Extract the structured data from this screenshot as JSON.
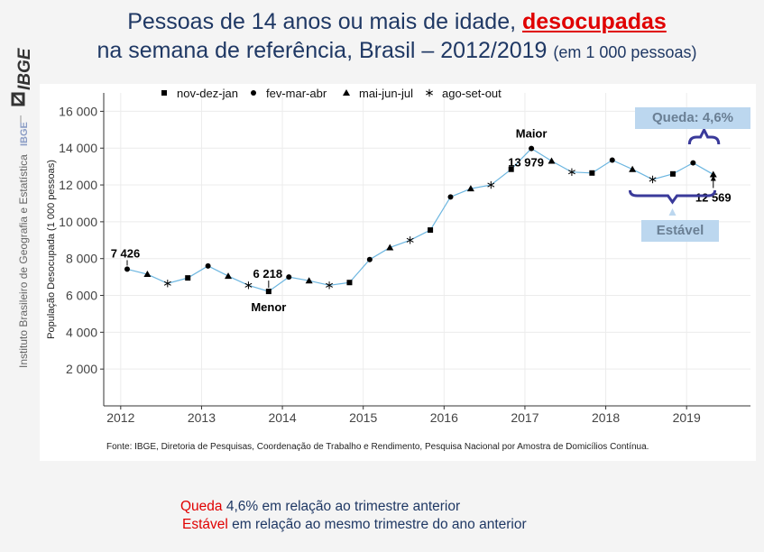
{
  "logo": {
    "text": "IBGE"
  },
  "side_text": {
    "institute": "Instituto Brasileiro de Geografia e Estatística",
    "short": "IBGE"
  },
  "title": {
    "line1_prefix": "Pessoas de 14 anos ou mais de idade, ",
    "line1_highlight": "desocupadas",
    "line2": "na semana de referência,  Brasil – 2012/2019 ",
    "line2_small": "(em 1 000 pessoas)"
  },
  "colors": {
    "line": "#6cb6e0",
    "title": "#1f3864",
    "highlight": "#e00000",
    "brace": "#3a3a9a",
    "callout_bg": "#bcd7ef"
  },
  "chart_data": {
    "type": "line",
    "ylabel": "População Desocupada (1 000 pessoas)",
    "ylim": [
      0,
      17000
    ],
    "y_ticks": [
      2000,
      4000,
      6000,
      8000,
      10000,
      12000,
      14000,
      16000
    ],
    "y_tick_labels": [
      "2 000",
      "4 000",
      "6 000",
      "8 000",
      "10 000",
      "12 000",
      "14 000",
      "16 000"
    ],
    "x_ticks": [
      2012,
      2013,
      2014,
      2015,
      2016,
      2017,
      2018,
      2019
    ],
    "legend": [
      {
        "label": "nov-dez-jan",
        "marker": "square"
      },
      {
        "label": "fev-mar-abr",
        "marker": "circle"
      },
      {
        "label": "mai-jun-jul",
        "marker": "triangle"
      },
      {
        "label": "ago-set-out",
        "marker": "asterisk"
      }
    ],
    "legend_position": "top",
    "grid": true,
    "points": [
      {
        "x": 2012.08,
        "y": 7426,
        "marker": "circle"
      },
      {
        "x": 2012.33,
        "y": 7150,
        "marker": "triangle"
      },
      {
        "x": 2012.58,
        "y": 6650,
        "marker": "asterisk"
      },
      {
        "x": 2012.83,
        "y": 6950,
        "marker": "square"
      },
      {
        "x": 2013.08,
        "y": 7600,
        "marker": "circle"
      },
      {
        "x": 2013.33,
        "y": 7050,
        "marker": "triangle"
      },
      {
        "x": 2013.58,
        "y": 6550,
        "marker": "asterisk"
      },
      {
        "x": 2013.83,
        "y": 6218,
        "marker": "square"
      },
      {
        "x": 2014.08,
        "y": 7000,
        "marker": "circle"
      },
      {
        "x": 2014.33,
        "y": 6800,
        "marker": "triangle"
      },
      {
        "x": 2014.58,
        "y": 6550,
        "marker": "asterisk"
      },
      {
        "x": 2014.83,
        "y": 6700,
        "marker": "square"
      },
      {
        "x": 2015.08,
        "y": 7950,
        "marker": "circle"
      },
      {
        "x": 2015.33,
        "y": 8600,
        "marker": "triangle"
      },
      {
        "x": 2015.58,
        "y": 9000,
        "marker": "asterisk"
      },
      {
        "x": 2015.83,
        "y": 9550,
        "marker": "square"
      },
      {
        "x": 2016.08,
        "y": 11350,
        "marker": "circle"
      },
      {
        "x": 2016.33,
        "y": 11800,
        "marker": "triangle"
      },
      {
        "x": 2016.58,
        "y": 12000,
        "marker": "asterisk"
      },
      {
        "x": 2016.83,
        "y": 12850,
        "marker": "square"
      },
      {
        "x": 2017.08,
        "y": 13979,
        "marker": "circle"
      },
      {
        "x": 2017.33,
        "y": 13300,
        "marker": "triangle"
      },
      {
        "x": 2017.58,
        "y": 12700,
        "marker": "asterisk"
      },
      {
        "x": 2017.83,
        "y": 12650,
        "marker": "square"
      },
      {
        "x": 2018.08,
        "y": 13350,
        "marker": "circle"
      },
      {
        "x": 2018.33,
        "y": 12850,
        "marker": "triangle"
      },
      {
        "x": 2018.58,
        "y": 12300,
        "marker": "asterisk"
      },
      {
        "x": 2018.83,
        "y": 12600,
        "marker": "square"
      },
      {
        "x": 2019.08,
        "y": 13200,
        "marker": "circle"
      },
      {
        "x": 2019.33,
        "y": 12569,
        "marker": "triangle"
      }
    ],
    "annotations": [
      {
        "text": "7 426",
        "index": 0
      },
      {
        "text": "6 218",
        "index": 7
      },
      {
        "text": "Menor",
        "index": 7
      },
      {
        "text": "Maior",
        "index": 20
      },
      {
        "text": "13 979",
        "index": 20
      },
      {
        "text": "12 569",
        "index": 29
      }
    ],
    "callouts": {
      "queda": "Queda: 4,6%",
      "estavel": "Estável"
    }
  },
  "footnote": "Fonte: IBGE, Diretoria de Pesquisas, Coordenação de Trabalho e Rendimento, Pesquisa Nacional por Amostra de Domicílios Contínua.",
  "notes": {
    "line1_highlight": "Queda",
    "line1_rest": " 4,6% em relação ao trimestre anterior",
    "line2_highlight": "Estável",
    "line2_rest": " em relação ao mesmo trimestre do ano anterior"
  }
}
